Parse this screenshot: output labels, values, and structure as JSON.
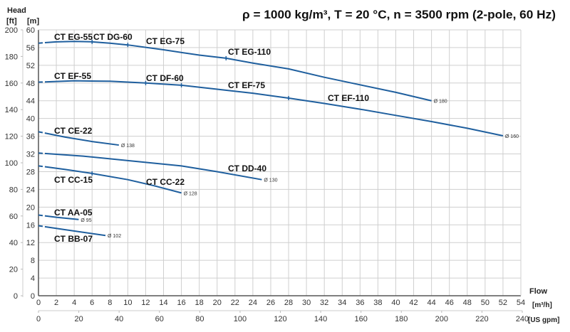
{
  "chart_data": {
    "type": "line",
    "title": "ρ = 1000 kg/m³, T = 20 °C, n = 3500 rpm (2-pole, 60 Hz)",
    "ylabel": "Head",
    "y_units": [
      "[ft]",
      "[m]"
    ],
    "xlabel": "Flow",
    "x_units": [
      "[m³/h]",
      "[US gpm]"
    ],
    "xlim": [
      0,
      54
    ],
    "ylim": [
      0,
      60
    ],
    "ylim_ft": [
      0,
      200
    ],
    "xlim_gpm": [
      0,
      240
    ],
    "x_ticks": [
      0,
      2,
      4,
      6,
      8,
      10,
      12,
      14,
      16,
      18,
      20,
      22,
      24,
      26,
      28,
      30,
      32,
      34,
      36,
      38,
      40,
      42,
      44,
      46,
      48,
      50,
      52,
      54
    ],
    "y_ticks": [
      0,
      4,
      8,
      12,
      16,
      20,
      24,
      28,
      32,
      36,
      40,
      44,
      48,
      52,
      56,
      60
    ],
    "y_ft_ticks": [
      0,
      20,
      40,
      60,
      80,
      100,
      120,
      140,
      160,
      180,
      200
    ],
    "x_gpm_ticks": [
      0,
      20,
      40,
      60,
      80,
      100,
      120,
      140,
      160,
      180,
      200,
      220,
      240
    ],
    "grid": true,
    "color": "#1f5f9e",
    "series": [
      {
        "name": "EG",
        "diameter": "Ø 180",
        "x": [
          0,
          2,
          4,
          6,
          8,
          10,
          14,
          18,
          21,
          24,
          28,
          32,
          36,
          40,
          44
        ],
        "y": [
          57,
          57.3,
          57.4,
          57.3,
          57,
          56.6,
          55.5,
          54.3,
          53.6,
          52.5,
          51.2,
          49.3,
          47.6,
          45.9,
          44.0
        ],
        "markers": [
          6,
          10,
          21
        ]
      },
      {
        "name": "EF",
        "diameter": "Ø 160",
        "x": [
          0,
          4,
          8,
          12,
          16,
          20,
          24,
          28,
          32,
          36,
          40,
          44,
          48,
          52
        ],
        "y": [
          48.2,
          48.5,
          48.4,
          48.0,
          47.5,
          46.6,
          45.7,
          44.6,
          43.4,
          42.1,
          40.7,
          39.3,
          37.8,
          36.1
        ],
        "markers": [
          12,
          16,
          28
        ]
      },
      {
        "name": "CE",
        "diameter": "Ø 138",
        "x": [
          0,
          3,
          6,
          9
        ],
        "y": [
          37,
          35.8,
          34.8,
          34.0
        ],
        "markers": []
      },
      {
        "name": "DD",
        "diameter": "Ø 130",
        "x": [
          0,
          5,
          10,
          16,
          20,
          25
        ],
        "y": [
          32.2,
          31.5,
          30.5,
          29.3,
          28.0,
          26.2
        ],
        "markers": []
      },
      {
        "name": "CC",
        "diameter": "Ø 128",
        "x": [
          0,
          3,
          6,
          10,
          13,
          16
        ],
        "y": [
          29.3,
          28.5,
          27.6,
          26.2,
          24.8,
          23.2
        ],
        "markers": [
          6
        ]
      },
      {
        "name": "AA",
        "diameter": "Ø 95",
        "x": [
          0,
          2,
          4.5
        ],
        "y": [
          18.2,
          17.7,
          17.2
        ],
        "markers": []
      },
      {
        "name": "BB",
        "diameter": "Ø 102",
        "x": [
          0,
          3,
          7.5
        ],
        "y": [
          15.8,
          14.9,
          13.6
        ],
        "markers": []
      }
    ],
    "labels": [
      "CT EG-55",
      "CT DG-60",
      "CT EG-75",
      "CT EG-110",
      "CT EF-55",
      "CT DF-60",
      "CT EF-75",
      "CT EF-110",
      "CT CE-22",
      "CT DD-40",
      "CT CC-15",
      "CT CC-22",
      "CT AA-05",
      "CT BB-07"
    ]
  }
}
